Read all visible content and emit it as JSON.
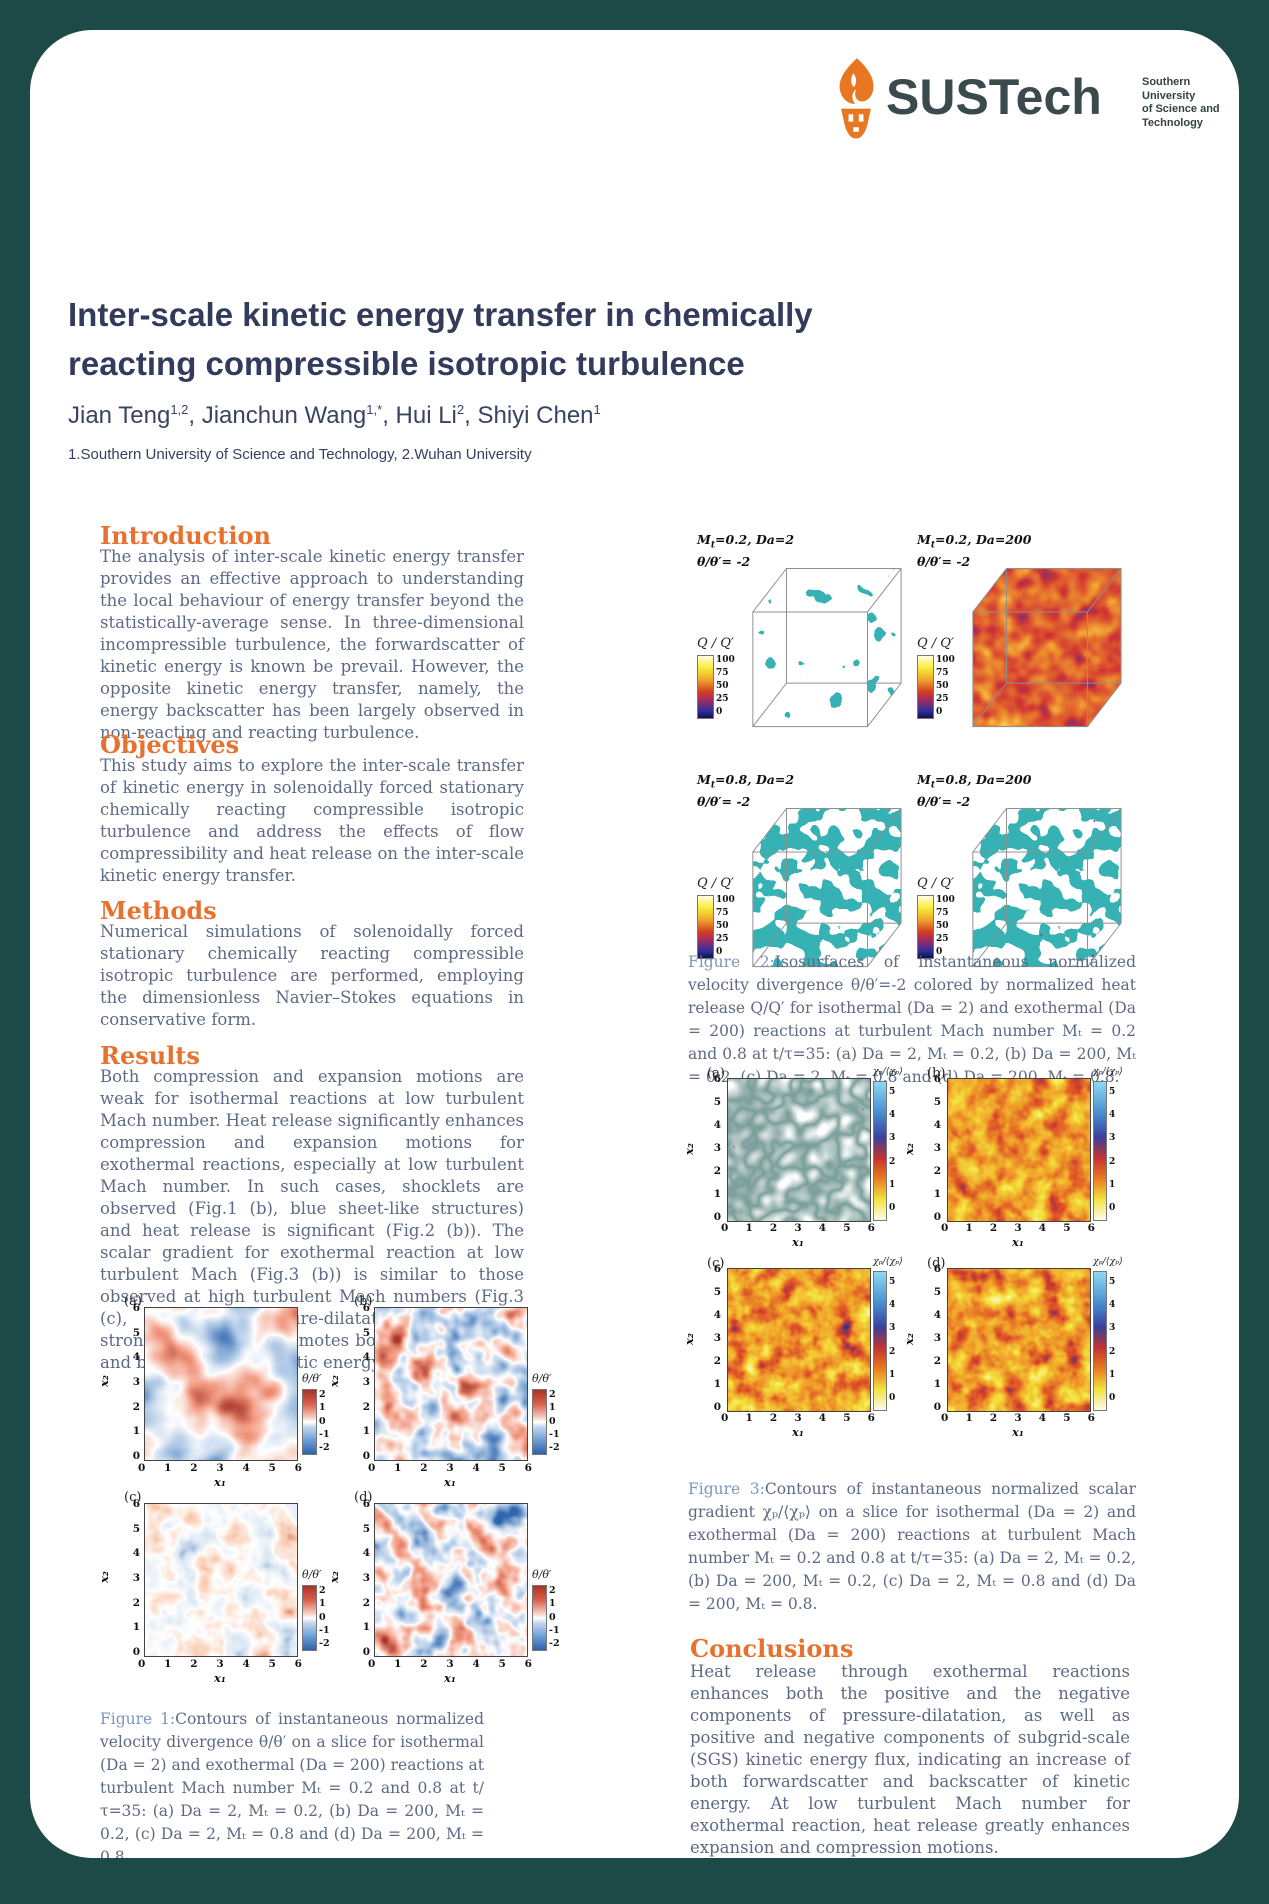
{
  "page": {
    "background": "#1d4a47",
    "sheet_background": "#ffffff"
  },
  "logo": {
    "wordmark": "SUSTech",
    "tagline": [
      "Southern University",
      "of Science and",
      "Technology"
    ],
    "torch_color": "#e87722",
    "text_color": "#3a4a4d"
  },
  "header": {
    "title_line1": "Inter-scale kinetic energy transfer in chemically",
    "title_line2": "reacting compressible isotropic turbulence",
    "authors": [
      {
        "name": "Jian Teng",
        "sup": "1,2"
      },
      {
        "name": ", Jianchun Wang",
        "sup": "1,*"
      },
      {
        "name": ", Hui Li",
        "sup": "2"
      },
      {
        "name": ", Shiyi Chen",
        "sup": "1"
      }
    ],
    "affiliations": "1.Southern University of Science and Technology, 2.Wuhan University"
  },
  "sections": {
    "introduction": {
      "heading": "Introduction",
      "body": "The analysis of inter-scale kinetic energy transfer provides an effective approach to understanding the local behaviour of energy transfer beyond the statistically-average sense. In three-dimensional incompressible turbulence, the forwardscatter of kinetic energy is known be prevail. However, the opposite kinetic energy transfer, namely, the energy backscatter has been largely observed in non-reacting and reacting turbulence."
    },
    "objectives": {
      "heading": "Objectives",
      "body": "This study aims to explore the inter-scale transfer of kinetic energy in solenoidally forced stationary chemically reacting compressible isotropic turbulence and address the effects of flow compressibility and heat release on the inter-scale kinetic energy transfer."
    },
    "methods": {
      "heading": "Methods",
      "body": "Numerical simulations of solenoidally forced stationary chemically reacting compressible isotropic turbulence are performed, employing the dimensionless Navier–Stokes equations in conservative form."
    },
    "results": {
      "heading": "Results",
      "body": "Both compression and expansion motions are weak for isothermal reactions at low turbulent Mach number. Heat release significantly enhances compression and expansion motions for exothermal reactions, especially at low turbulent Mach number. In such cases, shocklets are observed (Fig.1 (b), blue sheet-like structures) and heat release is significant (Fig.2 (b)). The scalar gradient for exothermal reaction at low turbulent Mach (Fig.3 (b)) is similar to those observed at high turbulent Mach numbers (Fig.3 (c), (d)). The pressure-dilatation induced by strong heat release promotes both forwardscatter and backscatter of kinetic energy."
    },
    "conclusions": {
      "heading": "Conclusions",
      "body": "Heat release through exothermal reactions enhances both the positive and the negative components of pressure-dilatation, as well as positive and negative components of subgrid-scale (SGS) kinetic energy flux, indicating an increase of both forwardscatter and backscatter of kinetic energy. At low turbulent Mach number for exothermal reaction, heat release greatly enhances expansion and compression motions."
    }
  },
  "figure1": {
    "panels": [
      {
        "label": "(a)"
      },
      {
        "label": "(b)"
      },
      {
        "label": "(c)"
      },
      {
        "label": "(d)"
      }
    ],
    "xlabel": "x₁",
    "ylabel": "x₂",
    "xticks": [
      0,
      1,
      2,
      3,
      4,
      5,
      6
    ],
    "yticks": [
      6,
      5,
      4,
      3,
      2,
      1,
      0
    ],
    "colorbar": {
      "label": "θ/θ′",
      "ticks": [
        2,
        1,
        0,
        -1,
        -2
      ]
    },
    "caption_label": "Figure 1:",
    "caption": "Contours of instantaneous normalized velocity divergence θ/θ′ on a slice for isothermal (Da = 2) and exothermal (Da = 200) reactions at turbulent Mach number Mₜ = 0.2 and 0.8 at t/τ=35: (a) Da = 2, Mₜ = 0.2, (b) Da = 200, Mₜ = 0.2, (c) Da = 2, Mₜ = 0.8 and (d) Da = 200, Mₜ = 0.8."
  },
  "figure2": {
    "panels": [
      {
        "m": "M",
        "msub": "t",
        "cond": "=0.2, Da=2",
        "iso": "θ/θ′= -2"
      },
      {
        "m": "M",
        "msub": "t",
        "cond": "=0.2, Da=200",
        "iso": "θ/θ′= -2"
      },
      {
        "m": "M",
        "msub": "t",
        "cond": "=0.8, Da=2",
        "iso": "θ/θ′= -2"
      },
      {
        "m": "M",
        "msub": "t",
        "cond": "=0.8, Da=200",
        "iso": "θ/θ′= -2"
      }
    ],
    "colorbar": {
      "label": "Q / Q′",
      "ticks": [
        100,
        75,
        50,
        25,
        0
      ]
    },
    "caption_label": "Figure 2:",
    "caption": "Isosurfaces of instantaneous normalized velocity divergence θ/θ′=-2 colored by normalized heat release Q/Q′ for isothermal (Da = 2) and exothermal (Da = 200) reactions at turbulent Mach number Mₜ = 0.2 and 0.8 at t/τ=35: (a) Da = 2, Mₜ = 0.2, (b) Da = 200, Mₜ = 0.2, (c) Da = 2, Mₜ = 0.8 and (d) Da = 200, Mₜ = 0.8."
  },
  "figure3": {
    "panels": [
      {
        "label": "(a)"
      },
      {
        "label": "(b)"
      },
      {
        "label": "(c)"
      },
      {
        "label": "(d)"
      }
    ],
    "xlabel": "x₁",
    "ylabel": "x₂",
    "xticks": [
      0,
      1,
      2,
      3,
      4,
      5,
      6
    ],
    "yticks": [
      6,
      5,
      4,
      3,
      2,
      1,
      0
    ],
    "colorbar": {
      "label": "χₚ/⟨χₚ⟩",
      "ticks": [
        5,
        4,
        3,
        2,
        1,
        0
      ]
    },
    "caption_label": "Figure 3:",
    "caption": "Contours of instantaneous normalized scalar gradient χₚ/⟨χₚ⟩ on a slice for isothermal (Da = 2) and exothermal (Da = 200) reactions at turbulent Mach number Mₜ = 0.2 and 0.8 at t/τ=35: (a) Da = 2, Mₜ = 0.2, (b) Da = 200, Mₜ = 0.2, (c) Da = 2, Mₜ = 0.8 and (d) Da = 200, Mₜ = 0.8."
  },
  "colors": {
    "accent_orange": "#e7712e",
    "title_navy": "#333b5d",
    "body_gray": "#5d6a83",
    "figure_label_blue": "#7d96bd",
    "isosurface_teal": "#35b2b5"
  }
}
